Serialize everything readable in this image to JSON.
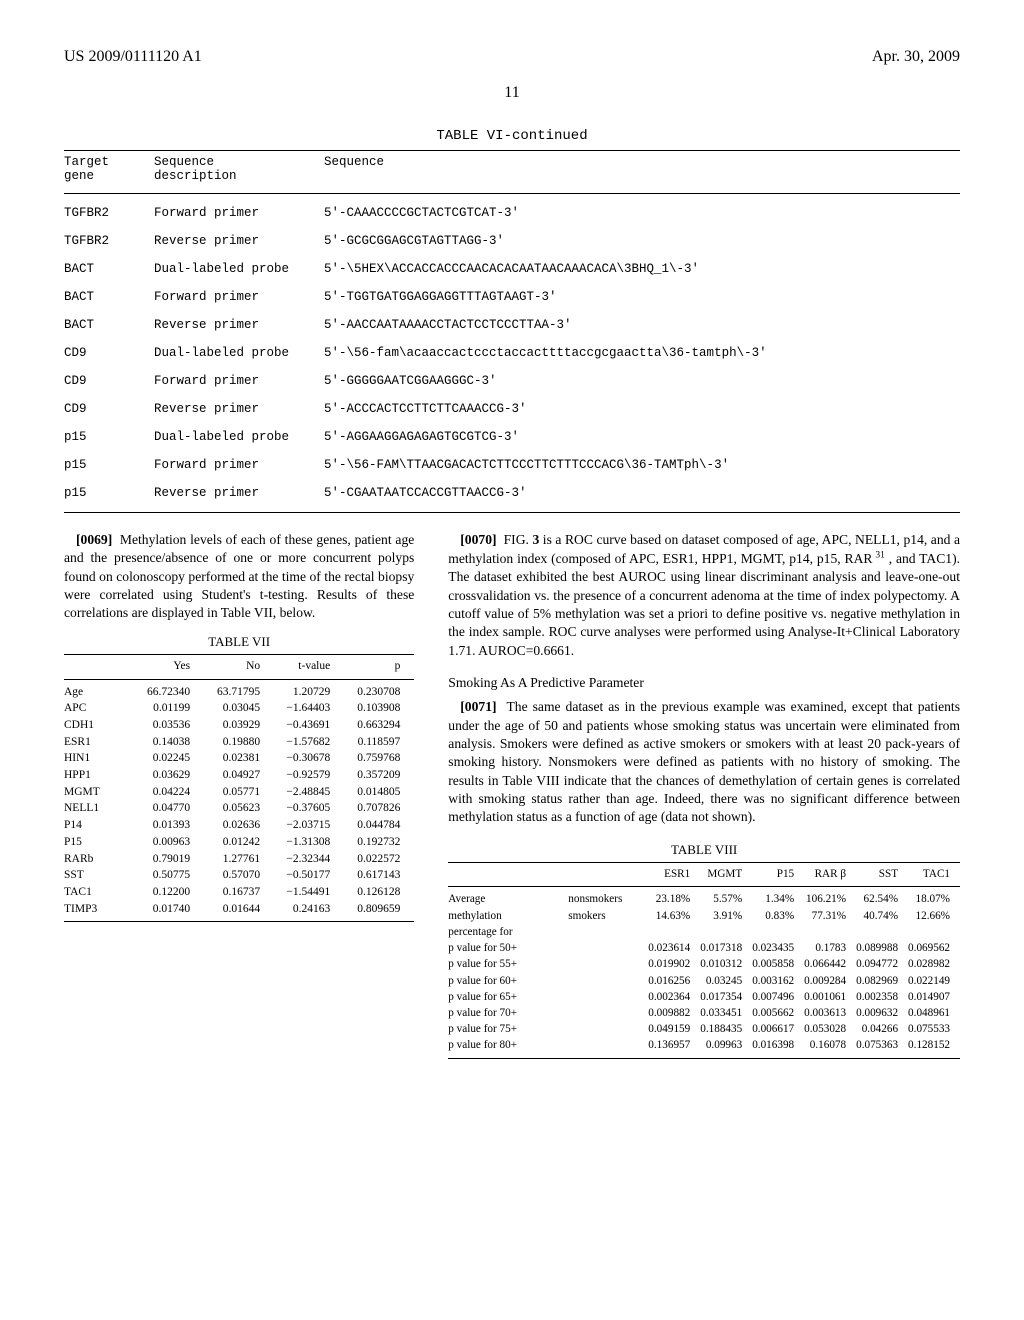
{
  "header": {
    "pub_left": "US 2009/0111120 A1",
    "pub_right": "Apr. 30, 2009",
    "page_number": "11"
  },
  "table6": {
    "title": "TABLE VI-continued",
    "headers": {
      "c1": "Target\ngene",
      "c2": "Sequence\ndescription",
      "c3": "Sequence"
    },
    "rows": [
      {
        "gene": "TGFBR2",
        "desc": "Forward primer",
        "seq": "5'-CAAACCCCGCTACTCGTCAT-3'"
      },
      {
        "gene": "TGFBR2",
        "desc": "Reverse primer",
        "seq": "5'-GCGCGGAGCGTAGTTAGG-3'"
      },
      {
        "gene": "BACT",
        "desc": "Dual-labeled probe",
        "seq": "5'-\\5HEX\\ACCACCACCCAACACACAATAACAAACACA\\3BHQ_1\\-3'"
      },
      {
        "gene": "BACT",
        "desc": "Forward primer",
        "seq": "5'-TGGTGATGGAGGAGGTTTAGTAAGT-3'"
      },
      {
        "gene": "BACT",
        "desc": "Reverse primer",
        "seq": "5'-AACCAATAAAACCTACTCCTCCCTTAA-3'"
      },
      {
        "gene": "CD9",
        "desc": "Dual-labeled probe",
        "seq": "5'-\\56-fam\\acaaccactccctaccacttttaccgcgaactta\\36-tamtph\\-3'"
      },
      {
        "gene": "CD9",
        "desc": "Forward primer",
        "seq": "5'-GGGGGAATCGGAAGGGC-3'"
      },
      {
        "gene": "CD9",
        "desc": "Reverse primer",
        "seq": "5'-ACCCACTCCTTCTTCAAACCG-3'"
      },
      {
        "gene": "p15",
        "desc": "Dual-labeled probe",
        "seq": "5'-AGGAAGGAGAGAGTGCGTCG-3'"
      },
      {
        "gene": "p15",
        "desc": "Forward primer",
        "seq": "5'-\\56-FAM\\TTAACGACACTCTTCCCTTCTTTCCCACG\\36-TAMTph\\-3'"
      },
      {
        "gene": "p15",
        "desc": "Reverse primer",
        "seq": "5'-CGAATAATCCACCGTTAACCG-3'"
      }
    ]
  },
  "left": {
    "para69": "Methylation levels of each of these genes, patient age and the presence/absence of one or more concurrent polyps found on colonoscopy performed at the time of the rectal biopsy were correlated using Student's t-testing. Results of these correlations are displayed in Table VII, below.",
    "table7": {
      "title": "TABLE VII",
      "headers": [
        "",
        "Yes",
        "No",
        "t-value",
        "p"
      ],
      "rows": [
        [
          "Age",
          "66.72340",
          "63.71795",
          "1.20729",
          "0.230708"
        ],
        [
          "APC",
          "0.01199",
          "0.03045",
          "−1.64403",
          "0.103908"
        ],
        [
          "CDH1",
          "0.03536",
          "0.03929",
          "−0.43691",
          "0.663294"
        ],
        [
          "ESR1",
          "0.14038",
          "0.19880",
          "−1.57682",
          "0.118597"
        ],
        [
          "HIN1",
          "0.02245",
          "0.02381",
          "−0.30678",
          "0.759768"
        ],
        [
          "HPP1",
          "0.03629",
          "0.04927",
          "−0.92579",
          "0.357209"
        ],
        [
          "MGMT",
          "0.04224",
          "0.05771",
          "−2.48845",
          "0.014805"
        ],
        [
          "NELL1",
          "0.04770",
          "0.05623",
          "−0.37605",
          "0.707826"
        ],
        [
          "P14",
          "0.01393",
          "0.02636",
          "−2.03715",
          "0.044784"
        ],
        [
          "P15",
          "0.00963",
          "0.01242",
          "−1.31308",
          "0.192732"
        ],
        [
          "RARb",
          "0.79019",
          "1.27761",
          "−2.32344",
          "0.022572"
        ],
        [
          "SST",
          "0.50775",
          "0.57070",
          "−0.50177",
          "0.617143"
        ],
        [
          "TAC1",
          "0.12200",
          "0.16737",
          "−1.54491",
          "0.126128"
        ],
        [
          "TIMP3",
          "0.01740",
          "0.01644",
          "0.24163",
          "0.809659"
        ]
      ]
    }
  },
  "right": {
    "para70": "FIG. 3 is a ROC curve based on dataset composed of age, APC, NELL1, p14, and a methylation index (composed of APC, ESR1, HPP1, MGMT, p14, p15, RAR 31 , and TAC1). The dataset exhibited the best AUROC using linear discriminant analysis and leave-one-out crossvalidation vs. the presence of a concurrent adenoma at the time of index polypectomy. A cutoff value of 5% methylation was set a priori to define positive vs. negative methylation in the index sample. ROC curve analyses were performed using Analyse-It+Clinical Laboratory 1.71. AUROC=0.6661.",
    "smoking_h": "Smoking As A Predictive Parameter",
    "para71": "The same dataset as in the previous example was examined, except that patients under the age of 50 and patients whose smoking status was uncertain were eliminated from analysis. Smokers were defined as active smokers or smokers with at least 20 pack-years of smoking history. Nonsmokers were defined as patients with no history of smoking. The results in Table VIII indicate that the chances of demethylation of certain genes is correlated with smoking status rather than age. Indeed, there was no significant difference between methylation status as a function of age (data not shown)."
  },
  "table8": {
    "title": "TABLE VIII",
    "col_headers": [
      "ESR1",
      "MGMT",
      "P15",
      "RAR β",
      "SST",
      "TAC1"
    ],
    "group_label": "Average\nmethylation\npercentage for",
    "group_rows": [
      {
        "label": "nonsmokers",
        "vals": [
          "23.18%",
          "5.57%",
          "1.34%",
          "106.21%",
          "62.54%",
          "18.07%"
        ]
      },
      {
        "label": "smokers",
        "vals": [
          "14.63%",
          "3.91%",
          "0.83%",
          "77.31%",
          "40.74%",
          "12.66%"
        ]
      }
    ],
    "p_rows": [
      {
        "label": "p value for 50+",
        "vals": [
          "0.023614",
          "0.017318",
          "0.023435",
          "0.1783",
          "0.089988",
          "0.069562"
        ]
      },
      {
        "label": "p value for 55+",
        "vals": [
          "0.019902",
          "0.010312",
          "0.005858",
          "0.066442",
          "0.094772",
          "0.028982"
        ]
      },
      {
        "label": "p value for 60+",
        "vals": [
          "0.016256",
          "0.03245",
          "0.003162",
          "0.009284",
          "0.082969",
          "0.022149"
        ]
      },
      {
        "label": "p value for 65+",
        "vals": [
          "0.002364",
          "0.017354",
          "0.007496",
          "0.001061",
          "0.002358",
          "0.014907"
        ]
      },
      {
        "label": "p value for 70+",
        "vals": [
          "0.009882",
          "0.033451",
          "0.005662",
          "0.003613",
          "0.009632",
          "0.048961"
        ]
      },
      {
        "label": "p value for 75+",
        "vals": [
          "0.049159",
          "0.188435",
          "0.006617",
          "0.053028",
          "0.04266",
          "0.075533"
        ]
      },
      {
        "label": "p value for 80+",
        "vals": [
          "0.136957",
          "0.09963",
          "0.016398",
          "0.16078",
          "0.075363",
          "0.128152"
        ]
      }
    ]
  }
}
